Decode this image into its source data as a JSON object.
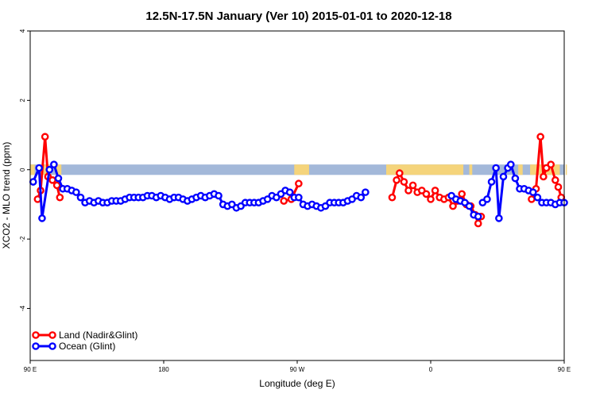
{
  "chart_data": {
    "type": "line",
    "title": "12.5N-17.5N January (Ver 10)   2015-01-01 to 2020-12-18",
    "xlabel": "Longitude (deg E)",
    "ylabel": "XCO2 - MLO trend (ppm)",
    "xlim": [
      90,
      450
    ],
    "ylim": [
      -5.5,
      4
    ],
    "xticks": [
      {
        "value": 90,
        "label": "90 E"
      },
      {
        "value": 180,
        "label": "180"
      },
      {
        "value": 270,
        "label": "90 W"
      },
      {
        "value": 360,
        "label": "0"
      },
      {
        "value": 450,
        "label": "90 E"
      }
    ],
    "yticks": [
      4,
      2,
      0,
      -2,
      -4
    ],
    "grid": false,
    "legend_position": "bottom-left",
    "land_mask": {
      "y_top": 0.15,
      "y_bottom": -0.15,
      "ocean_color": "#a3b8d9",
      "land_color": "#f5d47b",
      "land_spans": [
        [
          90,
          93
        ],
        [
          97,
          103
        ],
        [
          107,
          111
        ],
        [
          268,
          278
        ],
        [
          330,
          382
        ],
        [
          386,
          388
        ],
        [
          419,
          422
        ],
        [
          427,
          447
        ],
        [
          451,
          451
        ]
      ]
    },
    "series": [
      {
        "name": "Land (Nadir&Glint)",
        "color": "#ff0000",
        "segments": [
          [
            [
              95,
              -0.85
            ],
            [
              97,
              -0.6
            ],
            [
              100,
              0.95
            ],
            [
              102,
              -0.2
            ],
            [
              105,
              -0.3
            ],
            [
              108,
              -0.45
            ],
            [
              110,
              -0.8
            ]
          ],
          [
            [
              261,
              -0.9
            ],
            [
              266,
              -0.85
            ],
            [
              271,
              -0.4
            ]
          ],
          [
            [
              334,
              -0.8
            ],
            [
              337,
              -0.3
            ],
            [
              339,
              -0.1
            ],
            [
              342,
              -0.35
            ],
            [
              345,
              -0.6
            ],
            [
              348,
              -0.45
            ],
            [
              351,
              -0.65
            ],
            [
              354,
              -0.6
            ],
            [
              357,
              -0.7
            ],
            [
              360,
              -0.85
            ],
            [
              363,
              -0.6
            ],
            [
              366,
              -0.8
            ],
            [
              369,
              -0.85
            ],
            [
              372,
              -0.8
            ],
            [
              375,
              -1.05
            ],
            [
              378,
              -0.9
            ],
            [
              381,
              -0.7
            ],
            [
              384,
              -1.0
            ],
            [
              387,
              -1.05
            ],
            [
              390,
              -1.3
            ],
            [
              392,
              -1.55
            ],
            [
              394,
              -1.35
            ]
          ],
          [
            [
              428,
              -0.85
            ],
            [
              431,
              -0.55
            ],
            [
              434,
              0.95
            ],
            [
              436,
              -0.2
            ],
            [
              438,
              0.05
            ],
            [
              441,
              0.15
            ],
            [
              444,
              -0.3
            ],
            [
              446,
              -0.5
            ],
            [
              448,
              -0.8
            ]
          ]
        ]
      },
      {
        "name": "Ocean (Glint)",
        "color": "#0000ff",
        "segments": [
          [
            [
              92,
              -0.35
            ],
            [
              96,
              0.05
            ],
            [
              98,
              -1.4
            ],
            [
              103,
              0.0
            ],
            [
              106,
              0.15
            ],
            [
              109,
              -0.25
            ],
            [
              112,
              -0.55
            ],
            [
              115,
              -0.55
            ],
            [
              118,
              -0.6
            ],
            [
              121,
              -0.65
            ],
            [
              124,
              -0.8
            ],
            [
              127,
              -0.95
            ],
            [
              130,
              -0.9
            ],
            [
              133,
              -0.95
            ],
            [
              136,
              -0.9
            ],
            [
              139,
              -0.95
            ],
            [
              142,
              -0.95
            ],
            [
              145,
              -0.9
            ],
            [
              148,
              -0.9
            ],
            [
              151,
              -0.9
            ],
            [
              154,
              -0.85
            ],
            [
              157,
              -0.8
            ],
            [
              160,
              -0.8
            ],
            [
              163,
              -0.8
            ],
            [
              166,
              -0.8
            ],
            [
              169,
              -0.75
            ],
            [
              172,
              -0.75
            ],
            [
              175,
              -0.8
            ],
            [
              178,
              -0.75
            ],
            [
              181,
              -0.8
            ],
            [
              184,
              -0.85
            ],
            [
              187,
              -0.8
            ],
            [
              190,
              -0.8
            ],
            [
              193,
              -0.85
            ],
            [
              196,
              -0.9
            ],
            [
              199,
              -0.85
            ],
            [
              202,
              -0.8
            ],
            [
              205,
              -0.75
            ],
            [
              208,
              -0.8
            ],
            [
              211,
              -0.75
            ],
            [
              214,
              -0.7
            ],
            [
              217,
              -0.75
            ],
            [
              220,
              -1.0
            ],
            [
              223,
              -1.05
            ],
            [
              226,
              -1.0
            ],
            [
              229,
              -1.1
            ],
            [
              232,
              -1.05
            ],
            [
              235,
              -0.95
            ],
            [
              238,
              -0.95
            ],
            [
              241,
              -0.95
            ],
            [
              244,
              -0.95
            ],
            [
              247,
              -0.9
            ],
            [
              250,
              -0.85
            ],
            [
              253,
              -0.75
            ],
            [
              256,
              -0.8
            ],
            [
              259,
              -0.7
            ],
            [
              262,
              -0.6
            ],
            [
              265,
              -0.65
            ],
            [
              268,
              -0.8
            ],
            [
              271,
              -0.8
            ],
            [
              274,
              -1.0
            ],
            [
              277,
              -1.05
            ],
            [
              280,
              -1.0
            ],
            [
              283,
              -1.05
            ],
            [
              286,
              -1.1
            ],
            [
              289,
              -1.05
            ],
            [
              292,
              -0.95
            ],
            [
              295,
              -0.95
            ],
            [
              298,
              -0.95
            ],
            [
              301,
              -0.95
            ],
            [
              304,
              -0.9
            ],
            [
              307,
              -0.85
            ],
            [
              310,
              -0.75
            ],
            [
              313,
              -0.8
            ],
            [
              316,
              -0.65
            ]
          ],
          [
            [
              374,
              -0.75
            ],
            [
              377,
              -0.85
            ],
            [
              380,
              -0.9
            ],
            [
              383,
              -0.95
            ],
            [
              386,
              -1.05
            ],
            [
              389,
              -1.3
            ],
            [
              392,
              -1.35
            ]
          ],
          [
            [
              395,
              -0.95
            ],
            [
              398,
              -0.85
            ],
            [
              401,
              -0.35
            ],
            [
              404,
              0.05
            ],
            [
              406,
              -1.4
            ],
            [
              409,
              -0.2
            ],
            [
              412,
              0.05
            ],
            [
              414,
              0.15
            ],
            [
              417,
              -0.25
            ],
            [
              420,
              -0.55
            ],
            [
              423,
              -0.55
            ],
            [
              426,
              -0.6
            ],
            [
              429,
              -0.65
            ],
            [
              432,
              -0.8
            ],
            [
              435,
              -0.95
            ],
            [
              438,
              -0.95
            ],
            [
              441,
              -0.95
            ],
            [
              444,
              -1.0
            ],
            [
              447,
              -0.95
            ],
            [
              450,
              -0.95
            ]
          ]
        ]
      }
    ]
  }
}
